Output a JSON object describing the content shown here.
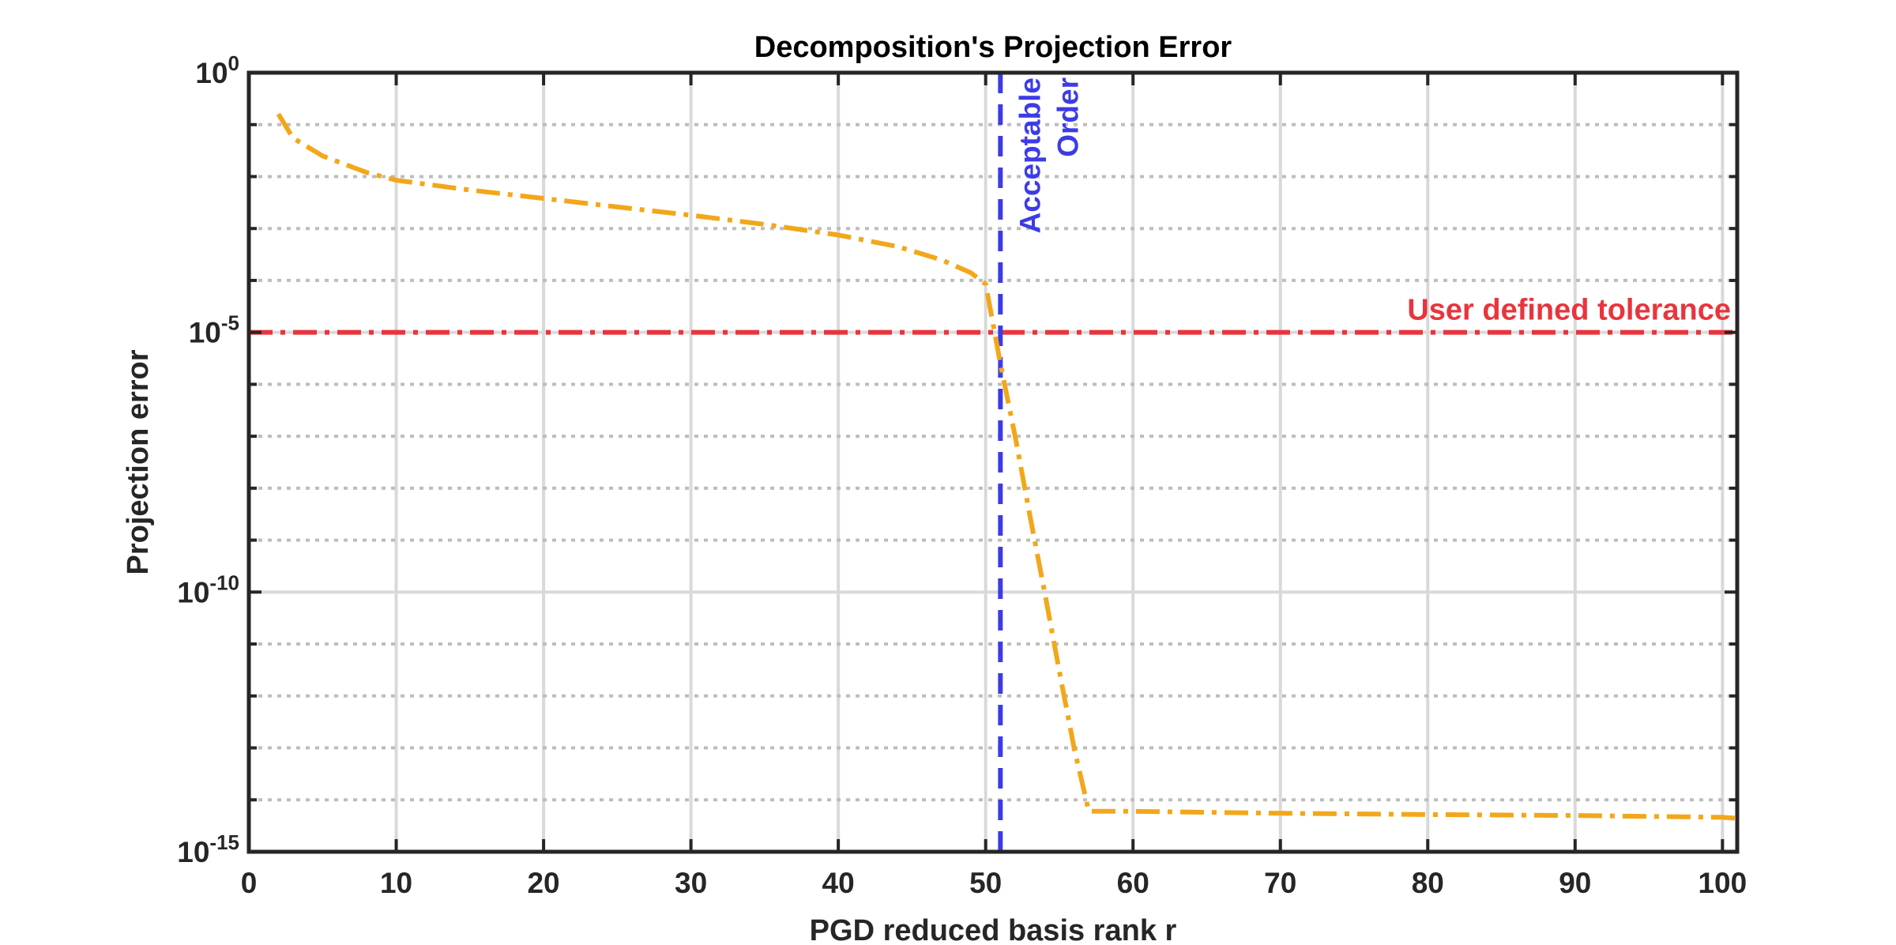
{
  "chart_data": {
    "type": "line",
    "title": "Decomposition's Projection Error",
    "xlabel": "PGD reduced basis rank r",
    "ylabel": "Projection error",
    "xlim": [
      0,
      101
    ],
    "ylim": [
      1e-15,
      1
    ],
    "yscale": "log",
    "xticks": [
      0,
      10,
      20,
      30,
      40,
      50,
      60,
      70,
      80,
      90,
      100
    ],
    "xtick_labels": [
      "0",
      "10",
      "20",
      "30",
      "40",
      "50",
      "60",
      "70",
      "80",
      "90",
      "100"
    ],
    "yticks": [
      {
        "value": 1,
        "base": "10",
        "exp": "0"
      },
      {
        "value": 1e-05,
        "base": "10",
        "exp": "-5"
      },
      {
        "value": 1e-10,
        "base": "10",
        "exp": "-10"
      },
      {
        "value": 1e-15,
        "base": "10",
        "exp": "-15"
      }
    ],
    "grid": true,
    "series": [
      {
        "color": "#F2A71B",
        "style": "dash-dot",
        "x": [
          2,
          3,
          5,
          8,
          10,
          15,
          20,
          25,
          30,
          35,
          40,
          44,
          47,
          49,
          50,
          51,
          52,
          53,
          54,
          55,
          56,
          57,
          60,
          70,
          80,
          90,
          100,
          101
        ],
        "y": [
          0.16,
          0.055,
          0.025,
          0.012,
          0.0085,
          0.0055,
          0.0038,
          0.0026,
          0.0018,
          0.0012,
          0.00075,
          0.00045,
          0.00025,
          0.00014,
          8.5e-05,
          2.5e-06,
          1e-07,
          3e-09,
          1e-10,
          3e-12,
          1e-13,
          6e-15,
          6e-15,
          5.5e-15,
          5.2e-15,
          5e-15,
          4.6e-15,
          4.4e-15
        ]
      }
    ],
    "reference_lines": [
      {
        "orientation": "horizontal",
        "value": 1e-05,
        "color": "#E8353D",
        "style": "dash-dot",
        "label": "User defined tolerance"
      },
      {
        "orientation": "vertical",
        "value": 51,
        "color": "#3C3CE6",
        "style": "dashed",
        "label_lines": [
          "Acceptable",
          "Order"
        ]
      }
    ]
  }
}
